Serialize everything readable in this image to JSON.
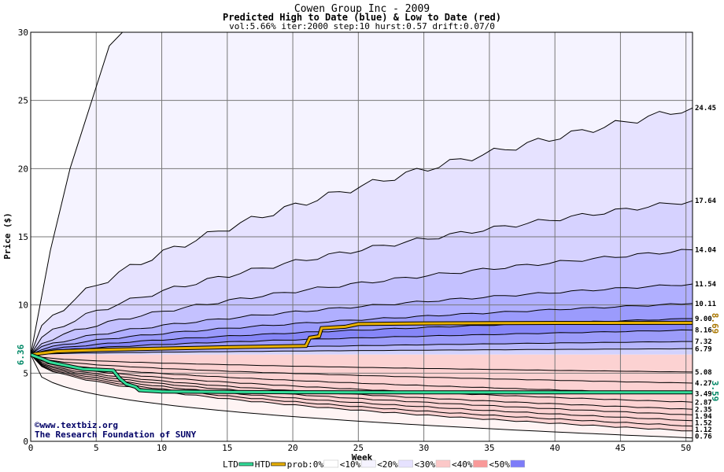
{
  "chart_data": {
    "type": "area",
    "title": "Cowen Group Inc - 2009",
    "subtitle": "Predicted High to Date (blue) &  Low to Date (red)",
    "params": "vol:5.66% iter:2000 step:10 hurst:0.57 drift:0.07/0",
    "xlabel": "Week",
    "ylabel": "Price ($)",
    "xlim": [
      0,
      50.5
    ],
    "ylim": [
      0,
      30
    ],
    "x_ticks": [
      0,
      5,
      10,
      15,
      20,
      25,
      30,
      35,
      40,
      45,
      50
    ],
    "y_ticks": [
      0,
      5,
      10,
      15,
      20,
      25,
      30
    ],
    "grid": true,
    "start_price": 6.36,
    "start_price_label": "6.36",
    "high_percentile_curves": [
      {
        "end": 24.45,
        "label": "24.45"
      },
      {
        "end": 17.64,
        "label": "17.64"
      },
      {
        "end": 14.04,
        "label": "14.04"
      },
      {
        "end": 11.54,
        "label": "11.54"
      },
      {
        "end": 10.11,
        "label": "10.11"
      },
      {
        "end": 9.0,
        "label": "9.00"
      },
      {
        "end": 8.16,
        "label": "8.16"
      },
      {
        "end": 7.32,
        "label": "7.32"
      },
      {
        "end": 6.79,
        "label": "6.79"
      }
    ],
    "low_percentile_curves": [
      {
        "end": 5.08,
        "label": "5.08"
      },
      {
        "end": 4.27,
        "label": "4.27"
      },
      {
        "end": 3.49,
        "label": "3.49"
      },
      {
        "end": 2.87,
        "label": "2.87"
      },
      {
        "end": 2.35,
        "label": "2.35"
      },
      {
        "end": 1.94,
        "label": "1.94"
      },
      {
        "end": 1.52,
        "label": "1.52"
      },
      {
        "end": 1.12,
        "label": "1.12"
      },
      {
        "end": 0.76,
        "label": "0.76"
      }
    ],
    "htd_series": {
      "name": "HTD",
      "end_label": "8.69",
      "points": [
        [
          0,
          6.36
        ],
        [
          2,
          6.6
        ],
        [
          5,
          6.7
        ],
        [
          10,
          6.8
        ],
        [
          15,
          6.9
        ],
        [
          21,
          7.0
        ],
        [
          21.3,
          7.6
        ],
        [
          22,
          7.7
        ],
        [
          22.2,
          8.3
        ],
        [
          24,
          8.4
        ],
        [
          25,
          8.6
        ],
        [
          30,
          8.65
        ],
        [
          40,
          8.68
        ],
        [
          50.5,
          8.69
        ]
      ]
    },
    "ltd_series": {
      "name": "LTD",
      "end_label": "3.59",
      "points": [
        [
          0,
          6.36
        ],
        [
          1,
          6.0
        ],
        [
          1.5,
          5.8
        ],
        [
          3,
          5.5
        ],
        [
          4,
          5.3
        ],
        [
          6.3,
          5.2
        ],
        [
          6.8,
          4.6
        ],
        [
          7.3,
          4.2
        ],
        [
          8,
          4.0
        ],
        [
          8.3,
          3.75
        ],
        [
          10,
          3.65
        ],
        [
          15,
          3.62
        ],
        [
          20,
          3.6
        ],
        [
          30,
          3.59
        ],
        [
          40,
          3.59
        ],
        [
          50.5,
          3.59
        ]
      ]
    },
    "colors": {
      "htd": "#e8b000",
      "ltd": "#33dd99"
    },
    "legend": {
      "placement": "bottom",
      "items": [
        {
          "label": "LTD",
          "color": "#33dd99",
          "kind": "line"
        },
        {
          "label": "HTD",
          "color": "#e8b000",
          "kind": "line"
        },
        {
          "label": "prob:0%",
          "color": "#ffffff",
          "kind": "swatch"
        },
        {
          "label": "<10%",
          "color": "#f5f3ff",
          "kind": "swatch"
        },
        {
          "label": "<20%",
          "color": "#e6e2ff",
          "kind": "swatch"
        },
        {
          "label": "<30%",
          "color": "#fcc8c8",
          "kind": "swatch"
        },
        {
          "label": "<40%",
          "color": "#f99999",
          "kind": "swatch"
        },
        {
          "label": "<50%",
          "color": "#7d7cf8",
          "kind": "swatch"
        }
      ]
    },
    "credits": [
      "©www.textbiz.org",
      "The Research Foundation of SUNY"
    ]
  }
}
